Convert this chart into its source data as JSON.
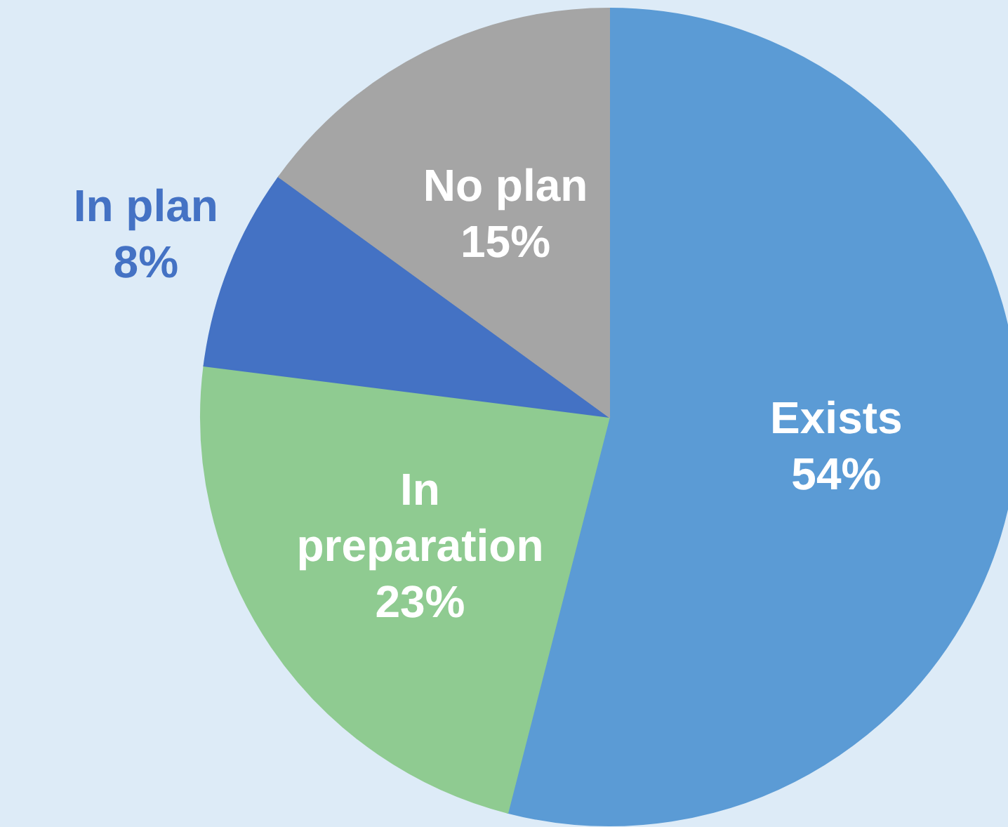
{
  "chart_data": {
    "type": "pie",
    "categories": [
      "Exists",
      "In preparation",
      "In plan",
      "No plan"
    ],
    "values": [
      54,
      23,
      8,
      15
    ],
    "value_labels": [
      "54%",
      "23%",
      "8%",
      "15%"
    ],
    "colors": [
      "#5b9bd5",
      "#8fcb91",
      "#4472c4",
      "#a5a5a5"
    ]
  }
}
